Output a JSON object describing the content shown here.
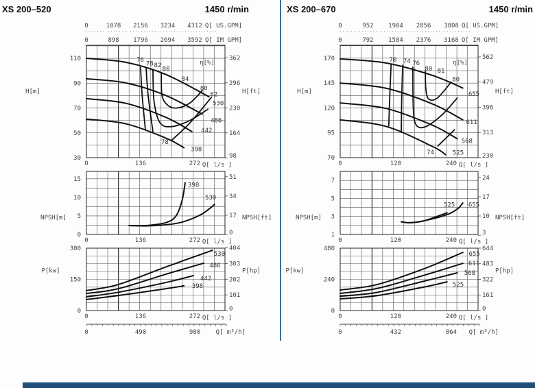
{
  "chart_data": [
    {
      "type": "line",
      "title": "XS 200–520",
      "speed": "1450 r/min",
      "xlim": [
        0,
        348
      ],
      "flow_axes": {
        "us_gpm": {
          "ticks": [
            "0",
            "1078",
            "2156",
            "3234",
            "4312"
          ],
          "label": "Q[ US.GPM]"
        },
        "im_gpm": {
          "ticks": [
            "0",
            "898",
            "1796",
            "2694",
            "3592"
          ],
          "label": "Q[ IM GPM]"
        },
        "ls": {
          "ticks": [
            "0",
            "136",
            "272"
          ],
          "label": "Q[ l/s ]"
        },
        "m3h": {
          "ticks": [
            "0",
            "490",
            "980"
          ],
          "label": "Q[ m³/h]"
        }
      },
      "head": {
        "ylabel": "H[m]",
        "ylabel_right": "H[ft]",
        "ylim": [
          30,
          120.5
        ],
        "yticks": [
          "110",
          "90",
          "70",
          "50",
          "30"
        ],
        "yticks_right": [
          "362",
          "296",
          "230",
          "164",
          "98"
        ],
        "efficiency_label": "η[%]",
        "series": [
          {
            "name": "530",
            "points": [
              [
                0,
                110
              ],
              [
                100,
                106.7
              ],
              [
                200,
                96.9
              ],
              [
                308,
                79
              ]
            ],
            "label_at": [
              317,
              74
            ]
          },
          {
            "name": "486",
            "points": [
              [
                0,
                93.5
              ],
              [
                100,
                90.1
              ],
              [
                200,
                80
              ],
              [
                291,
                65
              ]
            ],
            "label_at": [
              312,
              60
            ]
          },
          {
            "name": "442",
            "points": [
              [
                0,
                77.5
              ],
              [
                100,
                73.7
              ],
              [
                200,
                62.4
              ],
              [
                265,
                51
              ]
            ],
            "label_at": [
              288,
              52
            ]
          },
          {
            "name": "398",
            "points": [
              [
                0,
                61
              ],
              [
                100,
                57.2
              ],
              [
                200,
                45.7
              ],
              [
                245,
                38
              ]
            ],
            "label_at": [
              262,
              37
            ]
          }
        ],
        "efficiency_lines": [
          {
            "points": [
              [
                136,
                102.5
              ],
              [
                140,
                80
              ],
              [
                148,
                53
              ]
            ]
          },
          {
            "points": [
              [
                150,
                102
              ],
              [
                155,
                80
              ],
              [
                167,
                51
              ]
            ]
          },
          {
            "points": [
              [
                167,
                100
              ],
              [
                170,
                75
              ],
              [
                185,
                58
              ],
              [
                214,
                55
              ],
              [
                260,
                60
              ],
              [
                305,
                69
              ]
            ]
          },
          {
            "points": [
              [
                188,
                98.5
              ],
              [
                190,
                80
              ],
              [
                205,
                72
              ],
              [
                228,
                70
              ],
              [
                260,
                74
              ],
              [
                291,
                84
              ]
            ]
          },
          {
            "points": [
              [
                214,
                44
              ],
              [
                260,
                58
              ],
              [
                314,
                78.6
              ]
            ]
          }
        ],
        "efficiency_labels": [
          {
            "text": "76",
            "at": [
              135,
              109
            ]
          },
          {
            "text": "78",
            "at": [
              159,
              106
            ]
          },
          {
            "text": "82",
            "at": [
              179,
              104.5
            ]
          },
          {
            "text": "80",
            "at": [
              200,
              101.7
            ]
          },
          {
            "text": "84",
            "at": [
              248,
              93.5
            ]
          },
          {
            "text": "80",
            "at": [
              295,
              86
            ]
          },
          {
            "text": "82",
            "at": [
              320,
              81
            ]
          },
          {
            "text": "78",
            "at": [
              197,
              42.7
            ]
          }
        ]
      },
      "npsh": {
        "ylabel": "NPSH[m]",
        "ylabel_right": "NPSH[ft]",
        "ylim": [
          0,
          17
        ],
        "yticks": [
          "15",
          "10",
          "5",
          "0"
        ],
        "yticks_right": [
          "51",
          "34",
          "17",
          "0"
        ],
        "series": [
          {
            "name": "398",
            "points": [
              [
                107,
                2.4
              ],
              [
                150,
                2.4
              ],
              [
                200,
                3.2
              ],
              [
                225,
                5
              ],
              [
                240,
                9
              ],
              [
                248,
                13.9
              ]
            ],
            "label_at": [
              255,
              13.4
            ]
          },
          {
            "name": "530",
            "points": [
              [
                107,
                2.4
              ],
              [
                150,
                2.3
              ],
              [
                200,
                2.6
              ],
              [
                243,
                3.4
              ],
              [
                290,
                5.5
              ],
              [
                322,
                8.1
              ]
            ],
            "label_at": [
              298,
              10
            ]
          }
        ]
      },
      "power": {
        "ylabel": "P[kw]",
        "ylabel_right": "P[hp]",
        "ylim": [
          0,
          300
        ],
        "yticks": [
          "300",
          "150",
          "0"
        ],
        "yticks_right": [
          "404",
          "303",
          "202",
          "101",
          "0"
        ],
        "series": [
          {
            "name": "530",
            "points": [
              [
                0,
                96
              ],
              [
                80,
                125
              ],
              [
                200,
                210
              ],
              [
                317,
                290
              ]
            ],
            "label_at": [
              320,
              274
            ]
          },
          {
            "name": "486",
            "points": [
              [
                0,
                82
              ],
              [
                80,
                105
              ],
              [
                200,
                175
              ],
              [
                295,
                228
              ]
            ],
            "label_at": [
              309,
              218
            ]
          },
          {
            "name": "442",
            "points": [
              [
                0,
                66
              ],
              [
                80,
                88
              ],
              [
                200,
                135
              ],
              [
                269,
                168
              ]
            ],
            "label_at": [
              286,
              155
            ]
          },
          {
            "name": "398",
            "points": [
              [
                0,
                53
              ],
              [
                80,
                72
              ],
              [
                200,
                105
              ],
              [
                245,
                119
              ]
            ],
            "label_at": [
              265,
              119
            ]
          }
        ]
      }
    },
    {
      "type": "line",
      "title": "XS 200–670",
      "speed": "1450 r/min",
      "xlim": [
        0,
        298
      ],
      "flow_axes": {
        "us_gpm": {
          "ticks": [
            "0",
            "952",
            "1904",
            "2856",
            "3808"
          ],
          "label": "Q[ US.GPM]"
        },
        "im_gpm": {
          "ticks": [
            "0",
            "792",
            "1584",
            "2376",
            "3168"
          ],
          "label": "Q[ IM GPM]"
        },
        "ls": {
          "ticks": [
            "0",
            "120",
            "240"
          ],
          "label": "Q[ l/s ]"
        },
        "m3h": {
          "ticks": [
            "0",
            "432",
            "864"
          ],
          "label": "Q[ m³/h]"
        }
      },
      "head": {
        "ylabel": "H[m]",
        "ylabel_right": "H[ft]",
        "ylim": [
          70,
          183
        ],
        "yticks": [
          "170",
          "145",
          "120",
          "95",
          "70"
        ],
        "yticks_right": [
          "562",
          "479",
          "396",
          "313",
          "230"
        ],
        "efficiency_label": "η[%]",
        "series": [
          {
            "name": "655",
            "points": [
              [
                0,
                169.3
              ],
              [
                100,
                165.1
              ],
              [
                200,
                152.6
              ],
              [
                265,
                140
              ]
            ],
            "label_at": [
              277,
              134
            ]
          },
          {
            "name": "611",
            "points": [
              [
                0,
                145
              ],
              [
                100,
                139.7
              ],
              [
                200,
                123.9
              ],
              [
                265,
                108
              ]
            ],
            "label_at": [
              272,
              106
            ]
          },
          {
            "name": "568",
            "points": [
              [
                0,
                125
              ],
              [
                100,
                119.4
              ],
              [
                200,
                102.5
              ],
              [
                253,
                89
              ]
            ],
            "label_at": [
              262,
              87
            ]
          },
          {
            "name": "525",
            "points": [
              [
                0,
                108
              ],
              [
                100,
                101.3
              ],
              [
                200,
                81.1
              ],
              [
                228,
                73
              ]
            ],
            "label_at": [
              243,
              75
            ]
          }
        ],
        "efficiency_lines": [
          {
            "points": [
              [
                110,
                164
              ],
              [
                107,
                130
              ],
              [
                105,
                102
              ]
            ]
          },
          {
            "points": [
              [
                135,
                163
              ],
              [
                133,
                130
              ],
              [
                132,
                97
              ]
            ]
          },
          {
            "points": [
              [
                157,
                161
              ],
              [
                158,
                120
              ],
              [
                164,
                103
              ],
              [
                184,
                101
              ],
              [
                220,
                113
              ],
              [
                253,
                130
              ]
            ]
          },
          {
            "points": [
              [
                184,
                157
              ],
              [
                185,
                140
              ],
              [
                191,
                129
              ],
              [
                210,
                130
              ],
              [
                240,
                146
              ]
            ]
          },
          {
            "points": [
              [
                211,
                81.7
              ],
              [
                247,
                98
              ]
            ]
          }
        ],
        "efficiency_labels": [
          {
            "text": "70",
            "at": [
              114,
              168.6
            ]
          },
          {
            "text": "74",
            "at": [
              144,
              167
            ]
          },
          {
            "text": "76",
            "at": [
              164,
              165
            ]
          },
          {
            "text": "80",
            "at": [
              191,
              159.6
            ]
          },
          {
            "text": "81",
            "at": [
              218,
              157.6
            ]
          },
          {
            "text": "80",
            "at": [
              250,
              149
            ]
          },
          {
            "text": "74",
            "at": [
              195,
              75.5
            ]
          }
        ]
      },
      "npsh": {
        "ylabel": "NPSH[m]",
        "ylabel_right": "NPSH[ft]",
        "ylim": [
          1,
          8
        ],
        "yticks": [
          "7",
          "5",
          "3",
          "1"
        ],
        "yticks_right": [
          "24",
          "17",
          "10",
          "3"
        ],
        "series": [
          {
            "name": "525",
            "points": [
              [
                132,
                2.4
              ],
              [
                150,
                2.3
              ],
              [
                180,
                2.5
              ],
              [
                231,
                3.4
              ]
            ],
            "label_at": [
              224,
              4.3
            ]
          },
          {
            "name": "655",
            "points": [
              [
                132,
                2.4
              ],
              [
                150,
                2.3
              ],
              [
                180,
                2.5
              ],
              [
                231,
                3.2
              ],
              [
                255,
                3.9
              ],
              [
                265,
                4.5
              ]
            ],
            "label_at": [
              277,
              4.3
            ]
          }
        ]
      },
      "power": {
        "ylabel": "P[kw]",
        "ylabel_right": "P[hp]",
        "ylim": [
          0,
          480
        ],
        "yticks": [
          "480",
          "240",
          "0"
        ],
        "yticks_right": [
          "644",
          "483",
          "322",
          "161",
          "0"
        ],
        "series": [
          {
            "name": "655",
            "points": [
              [
                0,
                158
              ],
              [
                80,
                200
              ],
              [
                180,
                320
              ],
              [
                265,
                447
              ]
            ],
            "label_at": [
              278,
              437
            ]
          },
          {
            "name": "611",
            "points": [
              [
                0,
                132
              ],
              [
                80,
                170
              ],
              [
                180,
                270
              ],
              [
                265,
                363
              ]
            ],
            "label_at": [
              277,
              363
            ]
          },
          {
            "name": "568",
            "points": [
              [
                0,
                110
              ],
              [
                80,
                140
              ],
              [
                180,
                225
              ],
              [
                253,
                290
              ]
            ],
            "label_at": [
              268,
              290
            ]
          },
          {
            "name": "525",
            "points": [
              [
                0,
                90
              ],
              [
                80,
                115
              ],
              [
                180,
                180
              ],
              [
                231,
                221
              ]
            ],
            "label_at": [
              243,
              200
            ]
          }
        ]
      }
    }
  ]
}
